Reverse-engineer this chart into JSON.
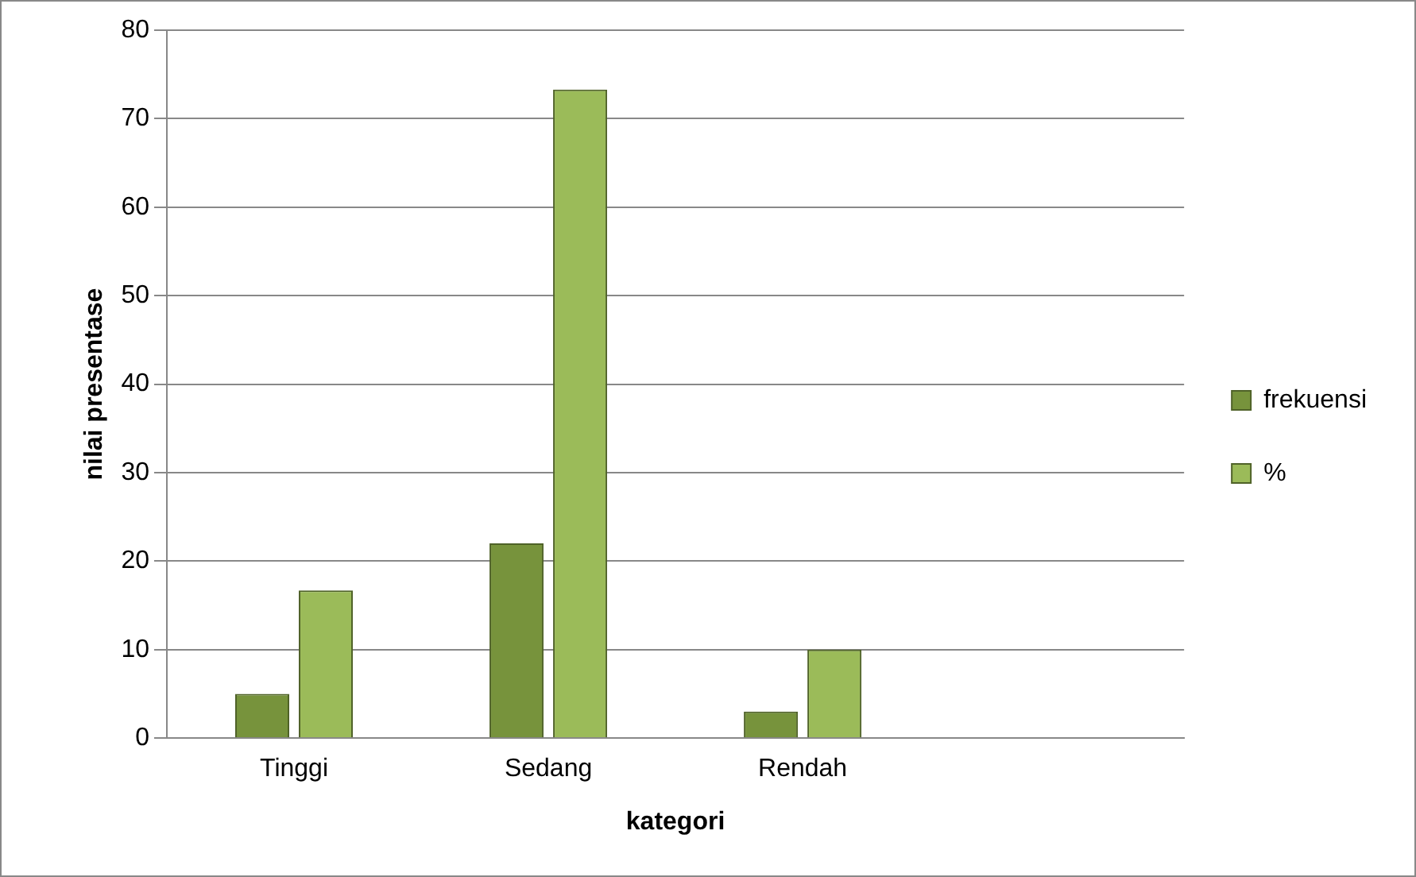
{
  "chart_data": {
    "type": "bar",
    "xlabel": "kategori",
    "ylabel": "nilai presentase",
    "categories": [
      "Tinggi",
      "Sedang",
      "Rendah",
      null
    ],
    "series": [
      {
        "name": "frekuensi",
        "color": "#77933c",
        "values": [
          5,
          22,
          3,
          null
        ]
      },
      {
        "name": "%",
        "color": "#9bbb59",
        "values": [
          16.7,
          73.3,
          10,
          null
        ]
      }
    ],
    "ylim": [
      0,
      80
    ],
    "yticks": [
      0,
      10,
      20,
      30,
      40,
      50,
      60,
      70,
      80
    ],
    "grid": "y",
    "legend": "right"
  }
}
